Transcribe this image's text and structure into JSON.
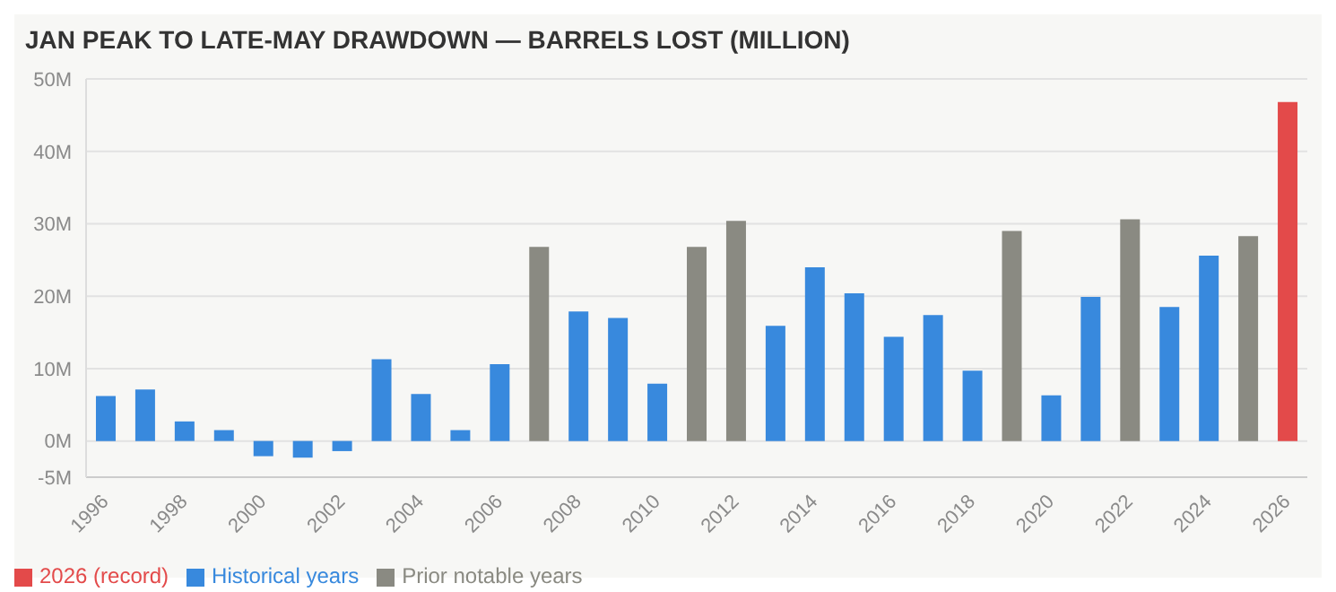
{
  "chart_data": {
    "type": "bar",
    "title": "JAN PEAK TO LATE-MAY DRAWDOWN — BARRELS LOST (MILLION)",
    "categories": [
      "1996",
      null,
      "1998",
      null,
      "2000",
      null,
      "2002",
      null,
      "2004",
      null,
      "2006",
      null,
      "2008",
      null,
      "2010",
      null,
      "2012",
      null,
      "2014",
      null,
      "2016",
      null,
      "2018",
      null,
      "2020",
      null,
      "2022",
      null,
      "2024",
      null,
      "2026"
    ],
    "stacked": true,
    "series": [
      {
        "name": "2026 (record)",
        "color": "#e34a4a",
        "values": [
          null,
          null,
          null,
          null,
          null,
          null,
          null,
          null,
          null,
          null,
          null,
          null,
          null,
          null,
          null,
          null,
          null,
          null,
          null,
          null,
          null,
          null,
          null,
          null,
          null,
          null,
          null,
          null,
          null,
          null,
          46.8
        ]
      },
      {
        "name": "Historical years",
        "color": "#3889dd",
        "values": [
          6.2,
          7.1,
          2.7,
          1.5,
          -2.1,
          -2.3,
          -1.4,
          11.3,
          6.5,
          1.5,
          10.6,
          null,
          17.9,
          17.0,
          7.9,
          null,
          null,
          15.9,
          24.0,
          20.4,
          14.4,
          17.4,
          9.7,
          null,
          6.3,
          19.9,
          null,
          18.5,
          25.6,
          null,
          null
        ]
      },
      {
        "name": "Prior notable years",
        "color": "#8a8a82",
        "values": [
          null,
          null,
          null,
          null,
          null,
          null,
          null,
          null,
          null,
          null,
          null,
          26.8,
          null,
          null,
          null,
          26.8,
          30.4,
          null,
          null,
          null,
          null,
          null,
          null,
          29.0,
          null,
          null,
          30.6,
          null,
          null,
          28.3,
          null
        ]
      }
    ],
    "ylim": [
      -5,
      50
    ],
    "yticks": [
      {
        "value": -5,
        "label": "-5M"
      },
      {
        "value": 0,
        "label": "0M"
      },
      {
        "value": 10,
        "label": "10M"
      },
      {
        "value": 20,
        "label": "20M"
      },
      {
        "value": 30,
        "label": "30M"
      },
      {
        "value": 40,
        "label": "40M"
      },
      {
        "value": 50,
        "label": "50M"
      }
    ],
    "grid": "y",
    "legend": "bottom left"
  }
}
